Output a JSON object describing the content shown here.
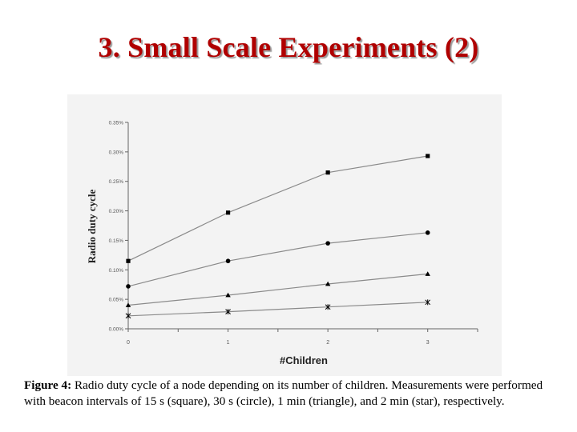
{
  "slide": {
    "title": "3. Small Scale Experiments (2)"
  },
  "caption": {
    "label": "Figure 4:",
    "text": " Radio duty cycle of a node depending on its number of children. Measurements were performed with beacon intervals of 15 s (square), 30 s (circle), 1 min (triangle), and 2 min (star), respectively."
  },
  "chart_data": {
    "type": "line",
    "title": "",
    "xlabel": "#Children",
    "ylabel": "Radio duty cycle",
    "x": [
      0,
      1,
      2,
      3
    ],
    "xticks": [
      "0",
      "1",
      "2",
      "3"
    ],
    "xlim": [
      0,
      3.5
    ],
    "ylim": [
      0,
      0.35
    ],
    "yticks": [
      {
        "value": 0.0,
        "label": "0.00%"
      },
      {
        "value": 0.05,
        "label": "0.05%"
      },
      {
        "value": 0.1,
        "label": "0.10%"
      },
      {
        "value": 0.15,
        "label": "0.15%"
      },
      {
        "value": 0.2,
        "label": "0.20%"
      },
      {
        "value": 0.25,
        "label": "0.25%"
      },
      {
        "value": 0.3,
        "label": "0.30%"
      },
      {
        "value": 0.35,
        "label": "0.35%"
      }
    ],
    "grid": false,
    "legend": "none",
    "line_color": "#8a8a8a",
    "marker_color": "#000000",
    "series": [
      {
        "marker": "square",
        "values": [
          0.115,
          0.197,
          0.265,
          0.293
        ]
      },
      {
        "marker": "circle",
        "values": [
          0.072,
          0.115,
          0.145,
          0.163
        ]
      },
      {
        "marker": "triangle",
        "values": [
          0.04,
          0.057,
          0.076,
          0.093
        ]
      },
      {
        "marker": "star",
        "values": [
          0.022,
          0.029,
          0.037,
          0.045
        ]
      }
    ]
  }
}
